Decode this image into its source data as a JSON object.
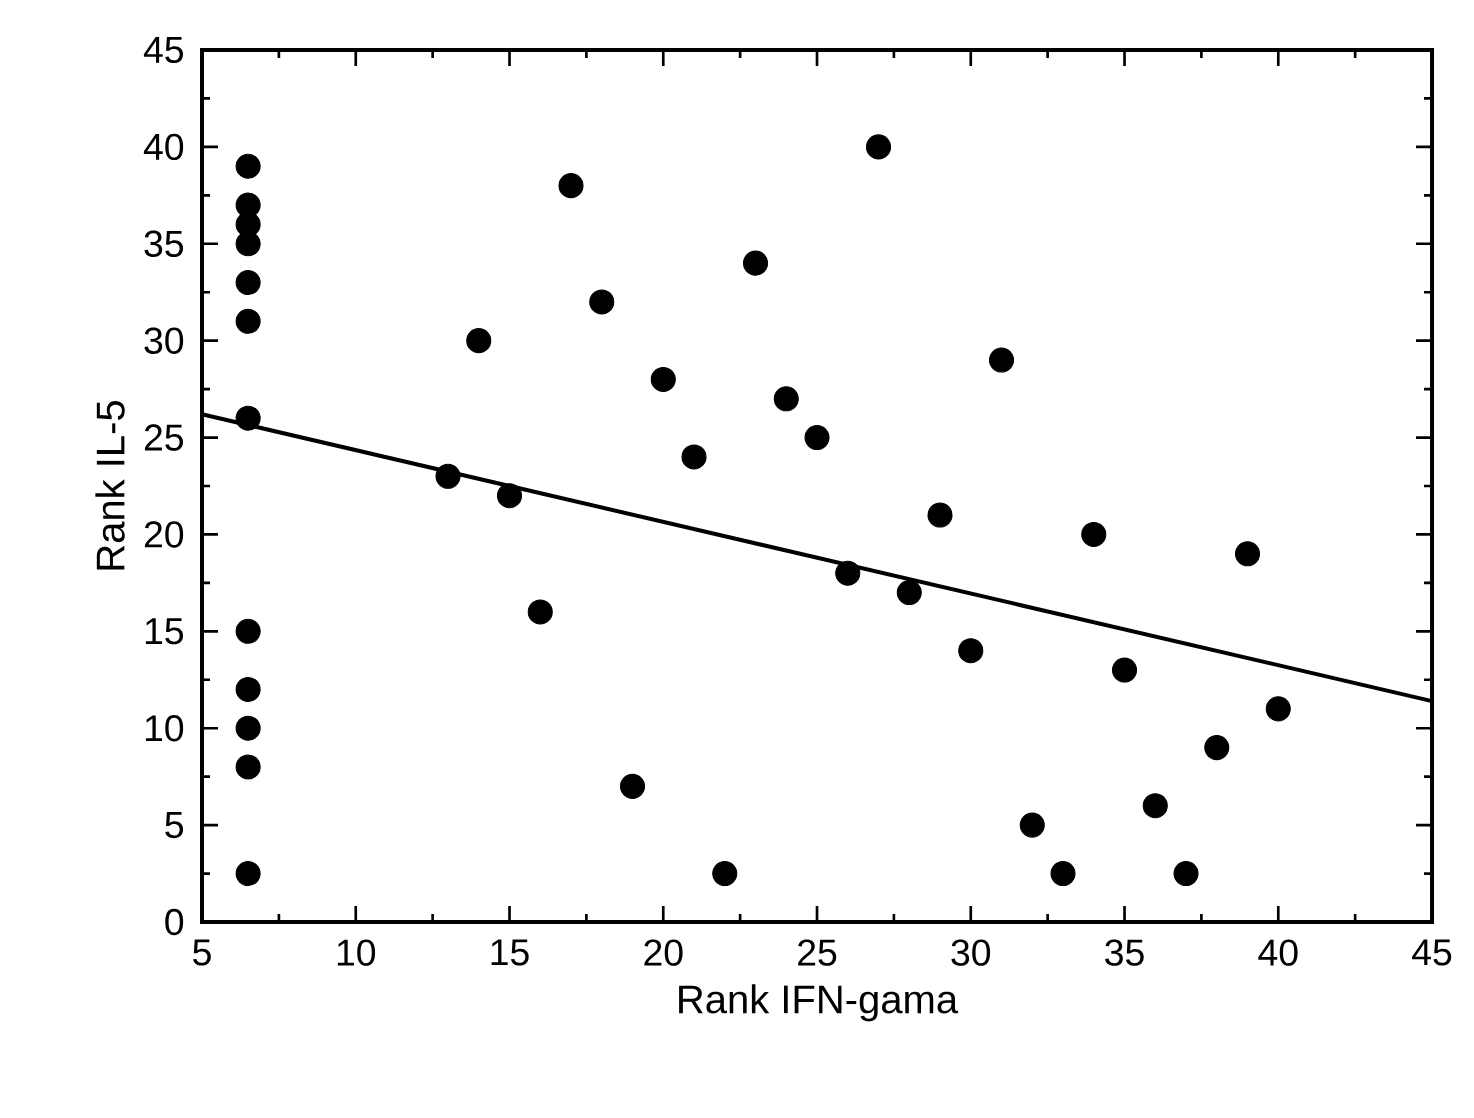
{
  "chart_data": {
    "type": "scatter",
    "xlabel": "Rank IFN-gama",
    "ylabel": "Rank  IL-5",
    "series": [
      {
        "color": "#000000",
        "marker": "circle",
        "x": [
          6.5,
          6.5,
          6.5,
          6.5,
          6.5,
          6.5,
          6.5,
          6.5,
          6.5,
          6.5,
          6.5,
          6.5,
          13,
          14,
          15,
          16,
          17,
          18,
          19,
          20,
          21,
          22,
          23,
          24,
          25,
          26,
          27,
          28,
          29,
          30,
          31,
          32,
          33,
          34,
          35,
          36,
          37,
          38,
          39,
          40
        ],
        "values": [
          39,
          37,
          36,
          35,
          33,
          31,
          26,
          15,
          12,
          10,
          8,
          2.5,
          23,
          30,
          22,
          16,
          38,
          32,
          7,
          28,
          24,
          2.5,
          34,
          27,
          25,
          18,
          40,
          17,
          21,
          14,
          29,
          5,
          2.5,
          20,
          13,
          6,
          2.5,
          9,
          19,
          11
        ]
      },
      {
        "type": "line",
        "color": "#000000",
        "marker": "none",
        "line_style": "solid",
        "x": [
          5,
          45
        ],
        "values": [
          26.2,
          11.4
        ]
      }
    ],
    "xlim": [
      5,
      45
    ],
    "ylim": [
      0,
      45
    ],
    "xticks": [
      5,
      10,
      15,
      20,
      25,
      30,
      35,
      40,
      45
    ],
    "yticks": [
      0,
      5,
      10,
      15,
      20,
      25,
      30,
      35,
      40,
      45
    ]
  }
}
